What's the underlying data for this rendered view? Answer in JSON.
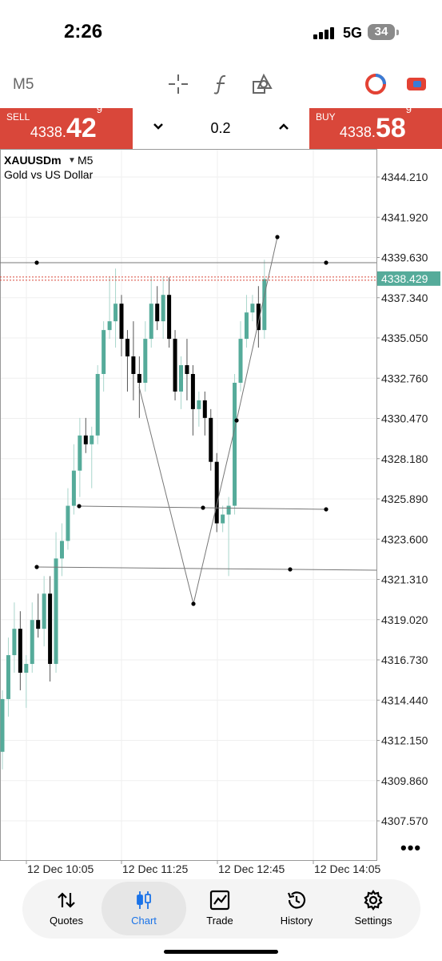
{
  "status": {
    "time": "2:26",
    "network": "5G",
    "battery": "34"
  },
  "toolbar": {
    "timeframe": "M5",
    "icons": [
      "crosshair-icon",
      "indicator-icon",
      "objects-icon",
      "account-icon",
      "trade-toggle-icon"
    ]
  },
  "trade": {
    "sell_label": "SELL",
    "sell_price_main": "4338.",
    "sell_price_big": "42",
    "sell_price_sup": "9",
    "buy_label": "BUY",
    "buy_price_main": "4338.",
    "buy_price_big": "58",
    "buy_price_sup": "9",
    "lot": "0.2",
    "color": "#d9473a"
  },
  "chart": {
    "symbol": "XAUUSDm",
    "timeframe": "M5",
    "description": "Gold vs US Dollar",
    "current_price_label": "4338.429",
    "y_ticks": [
      "4344.210",
      "4341.920",
      "4339.630",
      "4337.340",
      "4335.050",
      "4332.760",
      "4330.470",
      "4328.180",
      "4325.890",
      "4323.600",
      "4321.310",
      "4319.020",
      "4316.730",
      "4314.440",
      "4312.150",
      "4309.860",
      "4307.570"
    ],
    "x_ticks": [
      "12 Dec 10:05",
      "12 Dec 11:25",
      "12 Dec 12:45",
      "12 Dec 14:05"
    ],
    "bull_color": "#55ab9a",
    "bear_color": "#000000"
  },
  "chart_data": {
    "type": "candlestick",
    "candles": [
      {
        "o": 4311.5,
        "h": 4315.0,
        "l": 4310.5,
        "c": 4314.5
      },
      {
        "o": 4314.5,
        "h": 4318.0,
        "l": 4313.5,
        "c": 4317.0
      },
      {
        "o": 4317.0,
        "h": 4320.0,
        "l": 4316.0,
        "c": 4318.5
      },
      {
        "o": 4318.5,
        "h": 4319.5,
        "l": 4315.0,
        "c": 4316.0
      },
      {
        "o": 4316.0,
        "h": 4317.0,
        "l": 4314.0,
        "c": 4316.5
      },
      {
        "o": 4316.5,
        "h": 4320.0,
        "l": 4316.0,
        "c": 4319.0
      },
      {
        "o": 4319.0,
        "h": 4320.5,
        "l": 4318.0,
        "c": 4318.5
      },
      {
        "o": 4318.5,
        "h": 4321.5,
        "l": 4317.5,
        "c": 4320.5
      },
      {
        "o": 4320.5,
        "h": 4321.5,
        "l": 4315.5,
        "c": 4316.5
      },
      {
        "o": 4316.5,
        "h": 4324.0,
        "l": 4316.0,
        "c": 4322.5
      },
      {
        "o": 4322.5,
        "h": 4324.5,
        "l": 4321.5,
        "c": 4323.5
      },
      {
        "o": 4323.5,
        "h": 4326.5,
        "l": 4323.0,
        "c": 4325.5
      },
      {
        "o": 4325.5,
        "h": 4329.0,
        "l": 4325.0,
        "c": 4327.5
      },
      {
        "o": 4327.5,
        "h": 4330.5,
        "l": 4326.0,
        "c": 4329.5
      },
      {
        "o": 4329.5,
        "h": 4330.5,
        "l": 4328.5,
        "c": 4329.0
      },
      {
        "o": 4329.0,
        "h": 4330.0,
        "l": 4326.5,
        "c": 4329.5
      },
      {
        "o": 4329.5,
        "h": 4333.5,
        "l": 4329.0,
        "c": 4333.0
      },
      {
        "o": 4333.0,
        "h": 4336.0,
        "l": 4332.0,
        "c": 4335.5
      },
      {
        "o": 4335.5,
        "h": 4338.5,
        "l": 4335.0,
        "c": 4336.0
      },
      {
        "o": 4336.0,
        "h": 4339.0,
        "l": 4334.5,
        "c": 4337.0
      },
      {
        "o": 4337.0,
        "h": 4337.5,
        "l": 4334.0,
        "c": 4335.0
      },
      {
        "o": 4335.0,
        "h": 4335.5,
        "l": 4332.0,
        "c": 4334.0
      },
      {
        "o": 4334.0,
        "h": 4336.0,
        "l": 4331.5,
        "c": 4333.0
      },
      {
        "o": 4333.0,
        "h": 4334.0,
        "l": 4330.5,
        "c": 4332.5
      },
      {
        "o": 4332.5,
        "h": 4336.0,
        "l": 4332.0,
        "c": 4335.0
      },
      {
        "o": 4335.0,
        "h": 4338.5,
        "l": 4334.5,
        "c": 4337.0
      },
      {
        "o": 4337.0,
        "h": 4338.0,
        "l": 4335.5,
        "c": 4336.0
      },
      {
        "o": 4336.0,
        "h": 4338.5,
        "l": 4335.0,
        "c": 4337.5
      },
      {
        "o": 4337.5,
        "h": 4338.5,
        "l": 4334.5,
        "c": 4335.0
      },
      {
        "o": 4335.0,
        "h": 4335.5,
        "l": 4331.5,
        "c": 4332.0
      },
      {
        "o": 4332.0,
        "h": 4334.0,
        "l": 4331.0,
        "c": 4333.5
      },
      {
        "o": 4333.5,
        "h": 4335.0,
        "l": 4331.5,
        "c": 4333.0
      },
      {
        "o": 4333.0,
        "h": 4333.5,
        "l": 4329.5,
        "c": 4331.0
      },
      {
        "o": 4331.0,
        "h": 4332.0,
        "l": 4330.0,
        "c": 4331.5
      },
      {
        "o": 4331.5,
        "h": 4332.0,
        "l": 4329.5,
        "c": 4330.5
      },
      {
        "o": 4330.5,
        "h": 4331.0,
        "l": 4327.5,
        "c": 4328.0
      },
      {
        "o": 4328.0,
        "h": 4328.5,
        "l": 4324.0,
        "c": 4324.5
      },
      {
        "o": 4324.5,
        "h": 4325.5,
        "l": 4324.0,
        "c": 4325.0
      },
      {
        "o": 4325.0,
        "h": 4326.0,
        "l": 4321.5,
        "c": 4325.5
      },
      {
        "o": 4325.5,
        "h": 4333.0,
        "l": 4325.0,
        "c": 4332.5
      },
      {
        "o": 4332.5,
        "h": 4336.0,
        "l": 4332.0,
        "c": 4335.0
      },
      {
        "o": 4335.0,
        "h": 4337.5,
        "l": 4334.5,
        "c": 4336.5
      },
      {
        "o": 4336.5,
        "h": 4337.5,
        "l": 4336.0,
        "c": 4337.0
      },
      {
        "o": 4337.0,
        "h": 4338.0,
        "l": 4334.5,
        "c": 4335.5
      },
      {
        "o": 4335.5,
        "h": 4339.5,
        "l": 4335.0,
        "c": 4338.4
      }
    ],
    "current_price": 4338.429,
    "y_range": [
      4306.0,
      4345.0
    ],
    "bull_color": "#55ab9a",
    "bear_color": "#000000",
    "y_ticks": [
      4344.21,
      4341.92,
      4339.63,
      4337.34,
      4335.05,
      4332.76,
      4330.47,
      4328.18,
      4325.89,
      4323.6,
      4321.31,
      4319.02,
      4316.73,
      4314.44,
      4312.15,
      4309.86,
      4307.57
    ],
    "x_ticks": [
      "12 Dec 10:05",
      "12 Dec 11:25",
      "12 Dec 12:45",
      "12 Dec 14:05"
    ]
  },
  "nav": {
    "quotes": "Quotes",
    "chart": "Chart",
    "trade": "Trade",
    "history": "History",
    "settings": "Settings",
    "active": "Chart",
    "active_color": "#1a73e8"
  }
}
